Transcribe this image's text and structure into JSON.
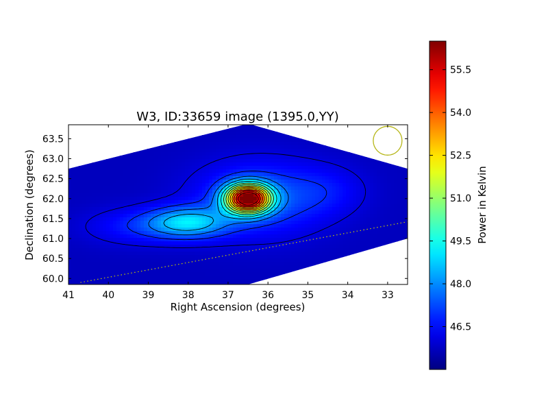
{
  "chart_data": {
    "type": "heatmap",
    "title": "W3, ID:33659 image (1395.0,YY)",
    "xlabel": "Right Ascension (degrees)",
    "ylabel": "Declination (degrees)",
    "xlim": [
      41.0,
      32.5
    ],
    "ylim": [
      59.85,
      63.85
    ],
    "x_inverted": true,
    "x_ticks": [
      41,
      40,
      39,
      38,
      37,
      36,
      35,
      34,
      33
    ],
    "x_tick_labels": [
      "41",
      "40",
      "39",
      "38",
      "37",
      "36",
      "35",
      "34",
      "33"
    ],
    "y_ticks": [
      60.0,
      60.5,
      61.0,
      61.5,
      62.0,
      62.5,
      63.0,
      63.5
    ],
    "y_tick_labels": [
      "60.0",
      "60.5",
      "61.0",
      "61.5",
      "62.0",
      "62.5",
      "63.0",
      "63.5"
    ],
    "colormap": "jet",
    "colorbar": {
      "label": "Power in Kelvin",
      "range": [
        45.0,
        56.5
      ],
      "ticks": [
        46.5,
        48.0,
        49.5,
        51.0,
        52.5,
        54.0,
        55.5
      ],
      "tick_labels": [
        "46.5",
        "48.0",
        "49.5",
        "51.0",
        "52.5",
        "54.0",
        "55.5"
      ]
    },
    "peak": {
      "ra": 36.5,
      "dec": 62.0,
      "value": 56.0
    },
    "background_level": 45.7,
    "contour_count": 13,
    "beam_circle": {
      "ra": 33.0,
      "dec": 63.45,
      "color": "#b5b515"
    },
    "dotted_line": {
      "from": [
        40.7,
        59.9
      ],
      "to": [
        32.5,
        61.42
      ],
      "color": "#c8c800"
    },
    "grid": false,
    "legend": "none"
  },
  "colors": {
    "background": "#ffffff",
    "contour": "#000000",
    "beam": "#b5b515"
  }
}
